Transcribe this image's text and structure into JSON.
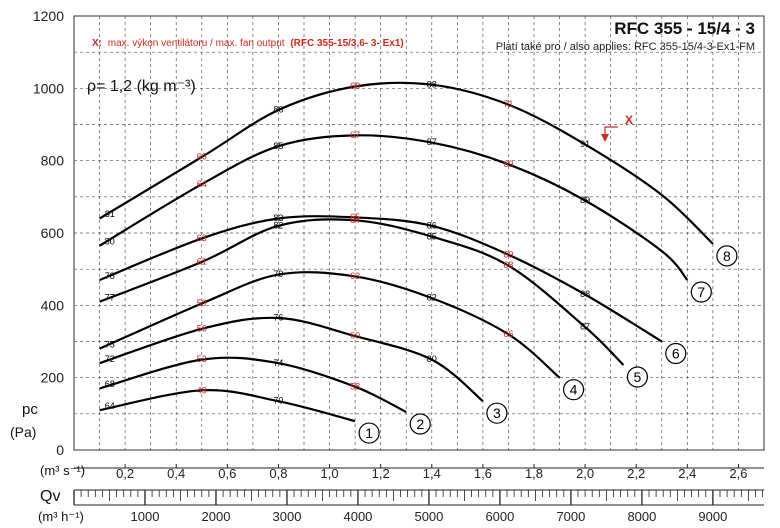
{
  "chart_data": {
    "type": "line",
    "title": "RFC 355 - 15/4 - 3",
    "subtitle": "Platí také pro / also applies: RFC 355-15/4-3-Ex1-FM",
    "note_prefix": "X:",
    "note_text": "max. výkon ventilátoru / max. fan output",
    "note_model": "(RFC 355-15/3,6- 3- Ex1)",
    "density_label": "ρ= 1,2 (kg m⁻³)",
    "max_marker_label": "X",
    "y_axis": {
      "label": "pc",
      "unit": "(Pa)",
      "ticks": [
        "0",
        "200",
        "400",
        "600",
        "800",
        "1000",
        "1200"
      ],
      "ylim": [
        0,
        1200
      ]
    },
    "x_axis": {
      "label": "Qv",
      "unit_s": "(m³ s⁻¹)",
      "unit_h": "(m³ h⁻¹)",
      "ticks_s": [
        "0,2",
        "0,4",
        "0,6",
        "0,8",
        "1,0",
        "1,2",
        "1,4",
        "1,6",
        "1,8",
        "2,0",
        "2,2",
        "2,4",
        "2,6"
      ],
      "ticks_h": [
        "1000",
        "2000",
        "3000",
        "4000",
        "5000",
        "6000",
        "7000",
        "8000",
        "9000"
      ],
      "xlim": [
        0,
        2.7
      ]
    },
    "grid": true,
    "series": [
      {
        "name": "1",
        "x": [
          0.1,
          0.5,
          0.8,
          1.1
        ],
        "y": [
          110,
          165,
          135,
          80
        ]
      },
      {
        "name": "2",
        "x": [
          0.1,
          0.5,
          0.8,
          1.1,
          1.3
        ],
        "y": [
          170,
          250,
          240,
          175,
          105
        ]
      },
      {
        "name": "3",
        "x": [
          0.1,
          0.5,
          0.8,
          1.1,
          1.4,
          1.6
        ],
        "y": [
          240,
          335,
          365,
          315,
          250,
          135
        ]
      },
      {
        "name": "4",
        "x": [
          0.1,
          0.5,
          0.8,
          1.1,
          1.4,
          1.7,
          1.9
        ],
        "y": [
          280,
          405,
          485,
          480,
          420,
          320,
          200
        ]
      },
      {
        "name": "5",
        "x": [
          0.1,
          0.5,
          0.8,
          1.1,
          1.4,
          1.7,
          2.0,
          2.15
        ],
        "y": [
          410,
          520,
          620,
          635,
          590,
          510,
          340,
          235
        ]
      },
      {
        "name": "6",
        "x": [
          0.1,
          0.5,
          0.8,
          1.1,
          1.4,
          1.7,
          2.0,
          2.3
        ],
        "y": [
          470,
          585,
          640,
          643,
          620,
          540,
          430,
          300
        ]
      },
      {
        "name": "7",
        "x": [
          0.1,
          0.5,
          0.8,
          1.1,
          1.4,
          1.7,
          2.0,
          2.3,
          2.4
        ],
        "y": [
          565,
          735,
          840,
          870,
          850,
          790,
          690,
          550,
          470
        ]
      },
      {
        "name": "8",
        "x": [
          0.1,
          0.5,
          0.8,
          1.1,
          1.4,
          1.7,
          2.0,
          2.3,
          2.5
        ],
        "y": [
          640,
          810,
          940,
          1005,
          1010,
          955,
          845,
          705,
          570
        ]
      }
    ],
    "efficiency_labels": [
      {
        "text": "64",
        "x": 0.14,
        "y": 121,
        "color": "black"
      },
      {
        "text": "49",
        "x": 0.5,
        "y": 165,
        "color": "red"
      },
      {
        "text": "70",
        "x": 0.8,
        "y": 137,
        "color": "black"
      },
      {
        "text": "68",
        "x": 0.14,
        "y": 182,
        "color": "black"
      },
      {
        "text": "53",
        "x": 0.5,
        "y": 251,
        "color": "red"
      },
      {
        "text": "74",
        "x": 0.8,
        "y": 241,
        "color": "black"
      },
      {
        "text": "58",
        "x": 1.1,
        "y": 176,
        "color": "red"
      },
      {
        "text": "72",
        "x": 0.14,
        "y": 252,
        "color": "black"
      },
      {
        "text": "56",
        "x": 0.5,
        "y": 336,
        "color": "red"
      },
      {
        "text": "76",
        "x": 0.8,
        "y": 366,
        "color": "black"
      },
      {
        "text": "60",
        "x": 1.1,
        "y": 316,
        "color": "red"
      },
      {
        "text": "80",
        "x": 1.4,
        "y": 251,
        "color": "black"
      },
      {
        "text": "75",
        "x": 0.14,
        "y": 292,
        "color": "black"
      },
      {
        "text": "59",
        "x": 0.5,
        "y": 406,
        "color": "red"
      },
      {
        "text": "79",
        "x": 0.8,
        "y": 486,
        "color": "black"
      },
      {
        "text": "63",
        "x": 1.1,
        "y": 481,
        "color": "red"
      },
      {
        "text": "82",
        "x": 1.4,
        "y": 421,
        "color": "black"
      },
      {
        "text": "66",
        "x": 1.7,
        "y": 321,
        "color": "red"
      },
      {
        "text": "77",
        "x": 0.14,
        "y": 421,
        "color": "black"
      },
      {
        "text": "61",
        "x": 0.5,
        "y": 521,
        "color": "red"
      },
      {
        "text": "82",
        "x": 0.8,
        "y": 621,
        "color": "black"
      },
      {
        "text": "64",
        "x": 1.1,
        "y": 636,
        "color": "red"
      },
      {
        "text": "85",
        "x": 1.4,
        "y": 591,
        "color": "black"
      },
      {
        "text": "68",
        "x": 1.7,
        "y": 511,
        "color": "red"
      },
      {
        "text": "87",
        "x": 2.0,
        "y": 341,
        "color": "black"
      },
      {
        "text": "78",
        "x": 0.14,
        "y": 481,
        "color": "black"
      },
      {
        "text": "63",
        "x": 0.5,
        "y": 586,
        "color": "red"
      },
      {
        "text": "83",
        "x": 0.8,
        "y": 641,
        "color": "black"
      },
      {
        "text": "65",
        "x": 1.1,
        "y": 644,
        "color": "red"
      },
      {
        "text": "86",
        "x": 1.4,
        "y": 621,
        "color": "black"
      },
      {
        "text": "69",
        "x": 1.7,
        "y": 541,
        "color": "red"
      },
      {
        "text": "88",
        "x": 2.0,
        "y": 431,
        "color": "black"
      },
      {
        "text": "80",
        "x": 0.14,
        "y": 577,
        "color": "black"
      },
      {
        "text": "64",
        "x": 0.5,
        "y": 736,
        "color": "red"
      },
      {
        "text": "85",
        "x": 0.8,
        "y": 841,
        "color": "black"
      },
      {
        "text": "67",
        "x": 1.1,
        "y": 871,
        "color": "red"
      },
      {
        "text": "87",
        "x": 1.4,
        "y": 851,
        "color": "black"
      },
      {
        "text": "69",
        "x": 1.7,
        "y": 791,
        "color": "red"
      },
      {
        "text": "89",
        "x": 2.0,
        "y": 691,
        "color": "black"
      },
      {
        "text": "81",
        "x": 0.14,
        "y": 652,
        "color": "black"
      },
      {
        "text": "66",
        "x": 0.5,
        "y": 811,
        "color": "red"
      },
      {
        "text": "86",
        "x": 0.8,
        "y": 941,
        "color": "black"
      },
      {
        "text": "68",
        "x": 1.1,
        "y": 1006,
        "color": "red"
      },
      {
        "text": "88",
        "x": 1.4,
        "y": 1011,
        "color": "black"
      },
      {
        "text": "71",
        "x": 1.7,
        "y": 956,
        "color": "red"
      },
      {
        "text": "91",
        "x": 2.0,
        "y": 846,
        "color": "black"
      }
    ]
  }
}
